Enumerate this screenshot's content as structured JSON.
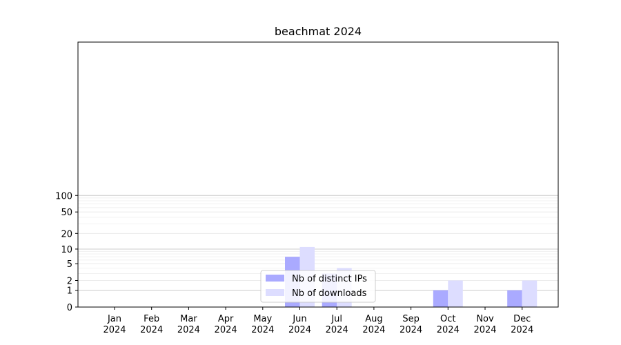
{
  "chart_data": {
    "type": "bar",
    "title": "beachmat 2024",
    "xlabel": "",
    "ylabel": "",
    "y_scale": "log(1+y)",
    "ylim": [
      0,
      120
    ],
    "y_ticks": [
      0,
      1,
      2,
      5,
      10,
      20,
      50,
      100
    ],
    "y_tick_labels": [
      "0",
      "1",
      "2",
      "5",
      "10",
      "20",
      "50",
      "100"
    ],
    "grid": "horizontal",
    "legend_position": "bottom-center",
    "categories": [
      [
        "Jan",
        "2024"
      ],
      [
        "Feb",
        "2024"
      ],
      [
        "Mar",
        "2024"
      ],
      [
        "Apr",
        "2024"
      ],
      [
        "May",
        "2024"
      ],
      [
        "Jun",
        "2024"
      ],
      [
        "Jul",
        "2024"
      ],
      [
        "Aug",
        "2024"
      ],
      [
        "Sep",
        "2024"
      ],
      [
        "Oct",
        "2024"
      ],
      [
        "Nov",
        "2024"
      ],
      [
        "Dec",
        "2024"
      ]
    ],
    "series": [
      {
        "name": "Nb of distinct IPs",
        "color": "#aaaaff",
        "values": [
          0,
          0,
          0,
          0,
          0,
          7,
          3,
          0,
          0,
          1,
          0,
          1
        ]
      },
      {
        "name": "Nb of downloads",
        "color": "#ddddff",
        "values": [
          0,
          0,
          0,
          0,
          0,
          11,
          4,
          0,
          0,
          2,
          0,
          2
        ]
      }
    ]
  }
}
